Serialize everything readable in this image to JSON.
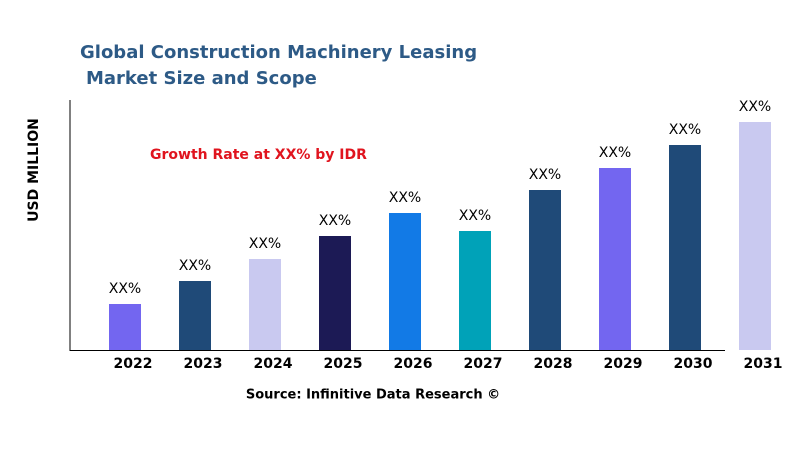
{
  "chart_data": {
    "type": "bar",
    "title": [
      "Global Construction Machinery Leasing",
      "Market Size and Scope"
    ],
    "y_label": "USD MILLION",
    "annotation": "Growth Rate at XX% by IDR",
    "source": "Source: Infinitive Data Research ©",
    "categories": [
      "2022",
      "2023",
      "2024",
      "2025",
      "2026",
      "2027",
      "2028",
      "2029",
      "2030",
      "2031"
    ],
    "values": [
      46,
      69,
      91,
      114,
      137,
      119,
      160,
      182,
      205,
      228
    ],
    "value_labels": [
      "XX%",
      "XX%",
      "XX%",
      "XX%",
      "XX%",
      "XX%",
      "XX%",
      "XX%",
      "XX%",
      "XX%"
    ],
    "colors": [
      "#7366f0",
      "#1f4a78",
      "#c9c9f0",
      "#1c1a55",
      "#127ae6",
      "#00a2b8",
      "#1f4a78",
      "#7366f0",
      "#1f4a78",
      "#c9c9f0"
    ],
    "ylim": [
      0,
      250
    ]
  }
}
